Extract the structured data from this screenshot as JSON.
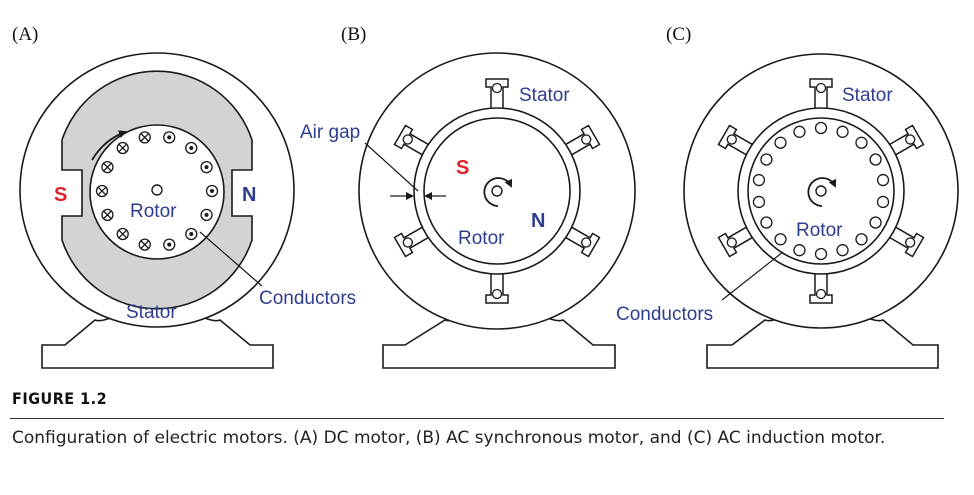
{
  "panels": {
    "a": {
      "letter": "(A)",
      "pole_left": "S",
      "pole_right": "N",
      "rotor": "Rotor",
      "stator": "Stator",
      "conductors": "Conductors"
    },
    "b": {
      "letter": "(B)",
      "stator": "Stator",
      "air_gap": "Air gap",
      "pole_s": "S",
      "pole_n": "N",
      "rotor": "Rotor"
    },
    "c": {
      "letter": "(C)",
      "stator": "Stator",
      "rotor": "Rotor",
      "conductors": "Conductors"
    }
  },
  "caption": {
    "title": "FIGURE 1.2",
    "text": "Configuration of electric motors. (A) DC motor, (B) AC synchronous motor, and (C) AC induction motor."
  },
  "colors": {
    "label": "#2f3d8f",
    "south_pole": "#e0202a",
    "north_pole": "#2f3d8f",
    "stator_fill_dc": "#d3d3d3",
    "line": "#1a1a1a"
  }
}
